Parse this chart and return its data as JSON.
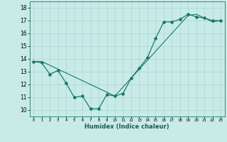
{
  "title": "",
  "xlabel": "Humidex (Indice chaleur)",
  "background_color": "#c8ebe8",
  "grid_color": "#a8d5d0",
  "line_color": "#1a7a6a",
  "xlim": [
    -0.5,
    23.5
  ],
  "ylim": [
    9.5,
    18.5
  ],
  "xticks": [
    0,
    1,
    2,
    3,
    4,
    5,
    6,
    7,
    8,
    9,
    10,
    11,
    12,
    13,
    14,
    15,
    16,
    17,
    18,
    19,
    20,
    21,
    22,
    23
  ],
  "yticks": [
    10,
    11,
    12,
    13,
    14,
    15,
    16,
    17,
    18
  ],
  "curve1_x": [
    0,
    1,
    2,
    3,
    4,
    5,
    6,
    7,
    8,
    9,
    10,
    11,
    12,
    13,
    14,
    15,
    16,
    17,
    18,
    19,
    20,
    21,
    22,
    23
  ],
  "curve1_y": [
    13.8,
    13.7,
    12.8,
    13.1,
    12.1,
    11.0,
    11.1,
    10.1,
    10.1,
    11.2,
    11.1,
    11.3,
    12.5,
    13.3,
    14.1,
    15.6,
    16.9,
    16.9,
    17.1,
    17.5,
    17.3,
    17.2,
    17.0,
    17.0
  ],
  "curve2_x": [
    0,
    1,
    2,
    3,
    4,
    5,
    6,
    7,
    8,
    9,
    10,
    11,
    12,
    13,
    14,
    15,
    16,
    17,
    18,
    19,
    20,
    21,
    22,
    23
  ],
  "curve2_y": [
    13.8,
    13.8,
    13.5,
    13.2,
    12.9,
    12.6,
    12.3,
    12.0,
    11.7,
    11.4,
    11.1,
    11.8,
    12.5,
    13.2,
    13.9,
    14.6,
    15.3,
    16.0,
    16.7,
    17.4,
    17.5,
    17.2,
    16.9,
    17.0
  ]
}
